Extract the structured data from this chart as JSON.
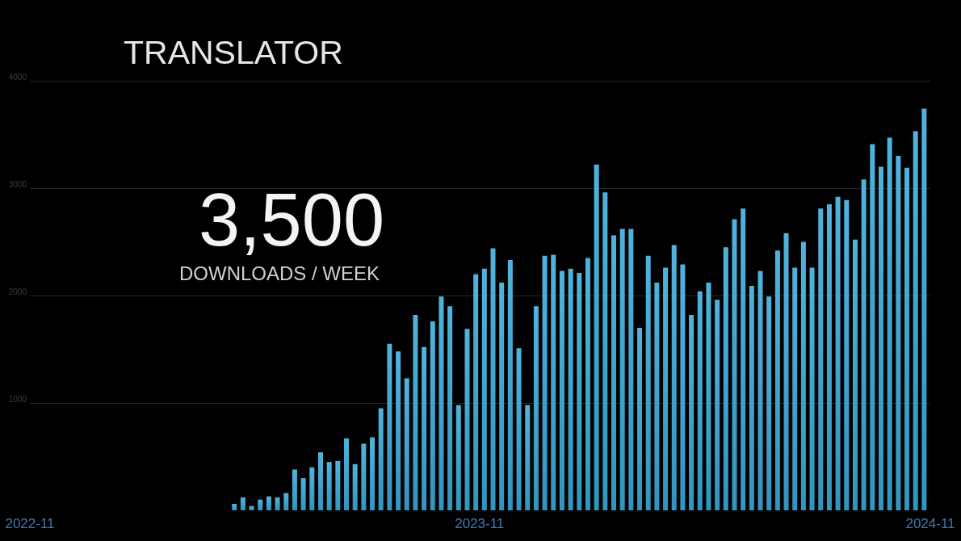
{
  "chart_data": {
    "type": "bar",
    "title": "TRANSLATOR",
    "annotations": [
      "3,500",
      "DOWNLOADS / WEEK"
    ],
    "x": [
      "2023-04-16",
      "2023-04-23",
      "2023-04-30",
      "2023-05-07",
      "2023-05-14",
      "2023-05-21",
      "2023-05-28",
      "2023-06-04",
      "2023-06-11",
      "2023-06-18",
      "2023-06-25",
      "2023-07-02",
      "2023-07-09",
      "2023-07-16",
      "2023-07-23",
      "2023-07-30",
      "2023-08-06",
      "2023-08-13",
      "2023-08-20",
      "2023-08-27",
      "2023-09-03",
      "2023-09-10",
      "2023-09-17",
      "2023-09-24",
      "2023-10-01",
      "2023-10-08",
      "2023-10-15",
      "2023-10-22",
      "2023-10-29",
      "2023-11-05",
      "2023-11-12",
      "2023-11-19",
      "2023-11-26",
      "2023-12-03",
      "2023-12-10",
      "2023-12-17",
      "2023-12-24",
      "2023-12-31",
      "2024-01-07",
      "2024-01-14",
      "2024-01-21",
      "2024-01-28",
      "2024-02-04",
      "2024-02-11",
      "2024-02-18",
      "2024-02-25",
      "2024-03-03",
      "2024-03-10",
      "2024-03-17",
      "2024-03-24",
      "2024-03-31",
      "2024-04-07",
      "2024-04-14",
      "2024-04-21",
      "2024-04-28",
      "2024-05-05",
      "2024-05-12",
      "2024-05-19",
      "2024-05-26",
      "2024-06-02",
      "2024-06-09",
      "2024-06-16",
      "2024-06-23",
      "2024-06-30",
      "2024-07-07",
      "2024-07-14",
      "2024-07-21",
      "2024-07-28",
      "2024-08-04",
      "2024-08-11",
      "2024-08-18",
      "2024-08-25",
      "2024-09-01",
      "2024-09-08",
      "2024-09-15",
      "2024-09-22",
      "2024-09-29",
      "2024-10-06",
      "2024-10-13",
      "2024-10-20",
      "2024-10-27"
    ],
    "values": [
      60,
      120,
      40,
      100,
      130,
      120,
      160,
      380,
      300,
      400,
      540,
      450,
      460,
      670,
      430,
      620,
      680,
      950,
      1550,
      1480,
      1230,
      1820,
      1520,
      1760,
      1990,
      1900,
      980,
      1690,
      2200,
      2250,
      2440,
      2120,
      2330,
      1510,
      980,
      1900,
      2370,
      2380,
      2230,
      2250,
      2210,
      2350,
      3220,
      2960,
      2560,
      2620,
      2620,
      1700,
      2370,
      2120,
      2260,
      2470,
      2290,
      1820,
      2040,
      2120,
      1960,
      2450,
      2710,
      2810,
      2090,
      2230,
      1990,
      2420,
      2580,
      2260,
      2500,
      2260,
      2810,
      2850,
      2920,
      2890,
      2520,
      3080,
      3410,
      3200,
      3470,
      3300,
      3190,
      3530,
      3740
    ],
    "color": "#38a9d7",
    "xlim": [
      "2022-11",
      "2024-11"
    ],
    "xticks": [
      "2022-11",
      "2023-11",
      "2024-11"
    ],
    "ylim": [
      0,
      4000
    ],
    "yticks": [
      1000,
      2000,
      3000,
      4000
    ],
    "grid": "y"
  }
}
